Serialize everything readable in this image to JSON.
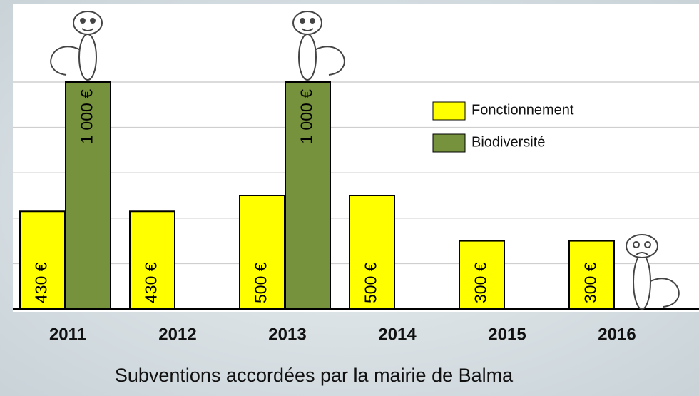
{
  "chart_data": {
    "type": "bar",
    "title": "Subventions accordées par la mairie de Balma",
    "categories": [
      "2011",
      "2012",
      "2013",
      "2014",
      "2015",
      "2016"
    ],
    "series": [
      {
        "name": "Fonctionnement",
        "color": "#ffff00",
        "values": [
          430,
          430,
          500,
          500,
          300,
          300
        ],
        "value_labels": [
          "430 €",
          "430 €",
          "500 €",
          "500 €",
          "300 €",
          "300 €"
        ]
      },
      {
        "name": "Biodiversité",
        "color": "#76923c",
        "values": [
          1000,
          null,
          1000,
          null,
          null,
          null
        ],
        "value_labels": [
          "1 000 €",
          null,
          "1 000 €",
          null,
          null,
          null
        ]
      }
    ],
    "ylim": [
      0,
      1000
    ],
    "yticks": [
      0,
      200,
      400,
      600,
      800,
      1000
    ],
    "grid": true
  }
}
